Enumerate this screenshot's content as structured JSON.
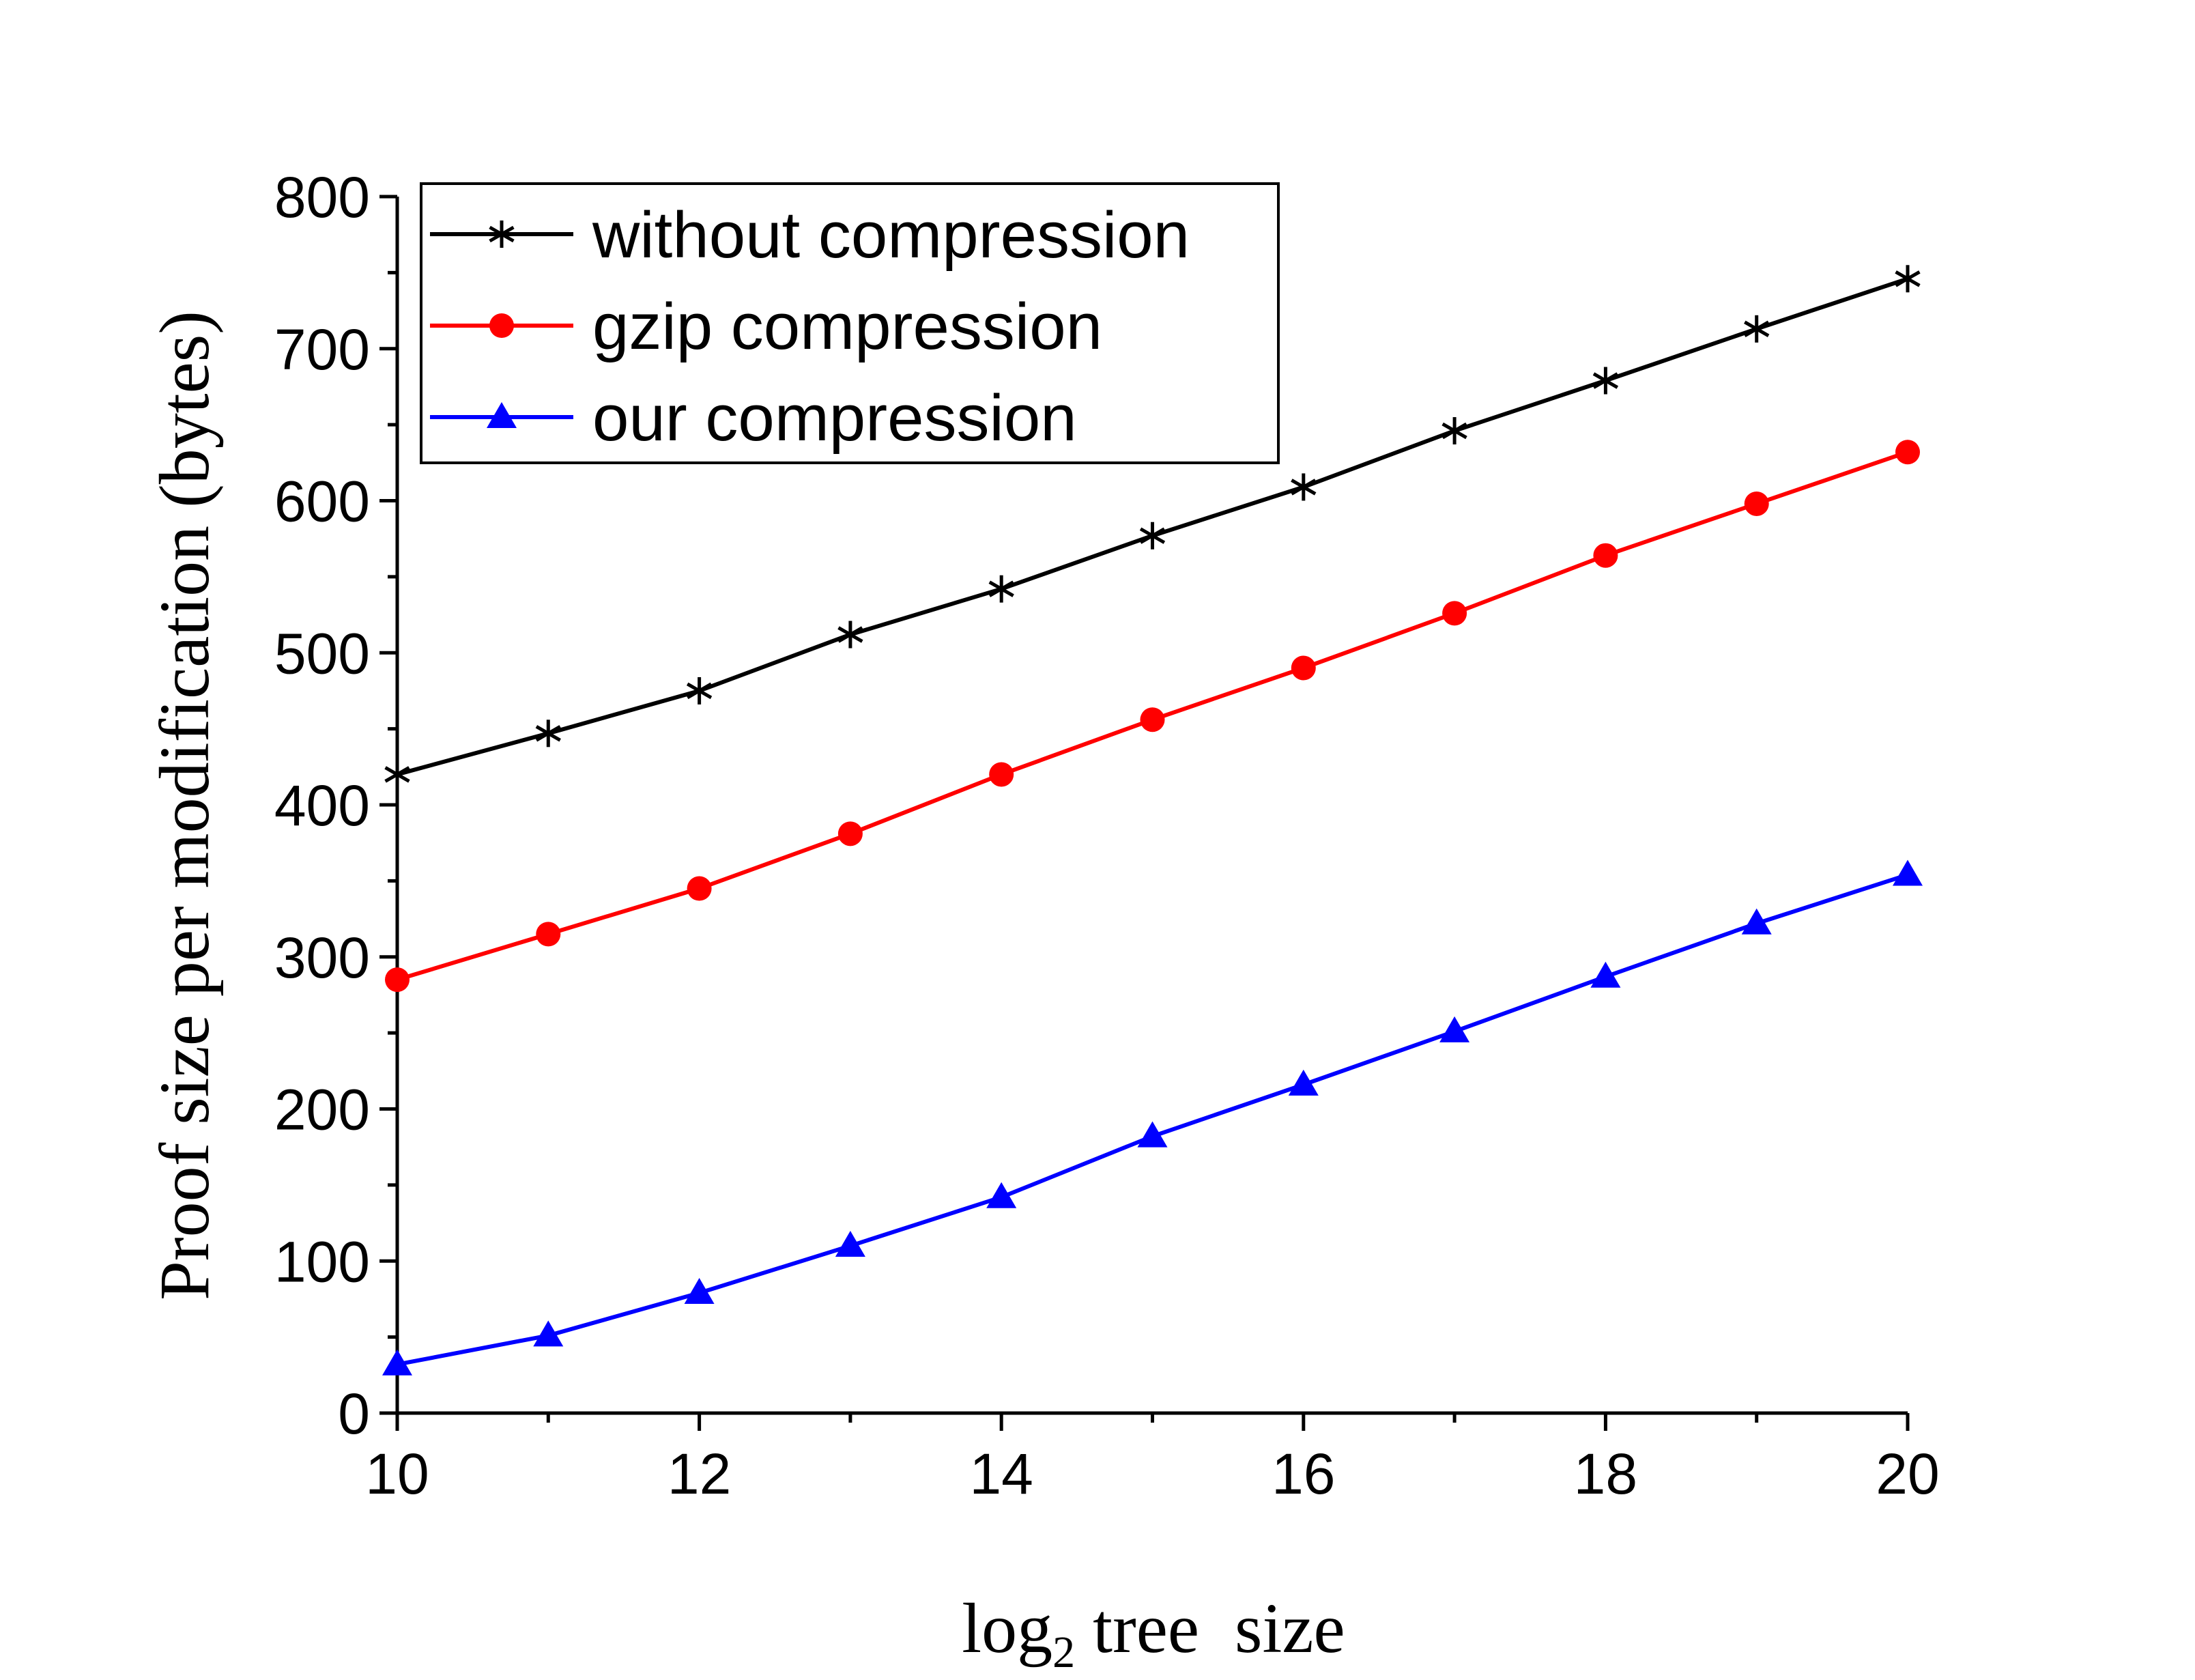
{
  "chart_data": {
    "type": "line",
    "title": "",
    "xlabel_main": "log",
    "xlabel_sub": "2",
    "xlabel_rest": " tree  size",
    "ylabel": "Proof size per modification (bytes)",
    "xlim": [
      10,
      20
    ],
    "ylim": [
      0,
      800
    ],
    "xticks": [
      10,
      12,
      14,
      16,
      18,
      20
    ],
    "yticks": [
      0,
      100,
      200,
      300,
      400,
      500,
      600,
      700,
      800
    ],
    "grid": false,
    "legend_placement": "top-left",
    "x": [
      10,
      11,
      12,
      13,
      14,
      15,
      16,
      17,
      18,
      19,
      20
    ],
    "series": [
      {
        "name": "without compression",
        "color": "#000000",
        "marker": "asterisk",
        "values": [
          420,
          447,
          475,
          512,
          542,
          577,
          609,
          646,
          679,
          713,
          746
        ]
      },
      {
        "name": "gzip compression",
        "color": "#ff0000",
        "marker": "circle",
        "values": [
          285,
          315,
          345,
          381,
          420,
          456,
          490,
          526,
          564,
          598,
          632
        ]
      },
      {
        "name": "our compression",
        "color": "#0000ff",
        "marker": "triangle",
        "values": [
          32,
          51,
          79,
          110,
          142,
          182,
          216,
          251,
          287,
          322,
          354
        ]
      }
    ]
  }
}
